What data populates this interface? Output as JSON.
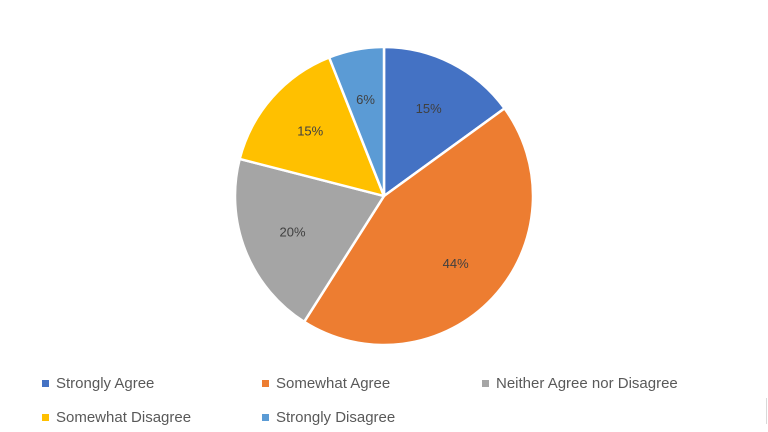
{
  "chart_data": {
    "type": "pie",
    "title": "",
    "slices": [
      {
        "label": "Strongly Agree",
        "value": 15,
        "display": "15%",
        "color": "#4472C4"
      },
      {
        "label": "Somewhat Agree",
        "value": 44,
        "display": "44%",
        "color": "#ED7D31"
      },
      {
        "label": "Neither Agree nor Disagree",
        "value": 20,
        "display": "20%",
        "color": "#A5A5A5"
      },
      {
        "label": "Somewhat Disagree",
        "value": 15,
        "display": "15%",
        "color": "#FFC000"
      },
      {
        "label": "Strongly Disagree",
        "value": 6,
        "display": "6%",
        "color": "#5B9BD5"
      }
    ],
    "start_angle_deg": 0,
    "direction": "clockwise",
    "legend_position": "bottom"
  },
  "legend": {
    "items": [
      {
        "label": "Strongly Agree",
        "color": "#4472C4"
      },
      {
        "label": "Somewhat Agree",
        "color": "#ED7D31"
      },
      {
        "label": "Neither Agree nor Disagree",
        "color": "#A5A5A5"
      },
      {
        "label": "Somewhat Disagree",
        "color": "#FFC000"
      },
      {
        "label": "Strongly Disagree",
        "color": "#5B9BD5"
      }
    ]
  }
}
